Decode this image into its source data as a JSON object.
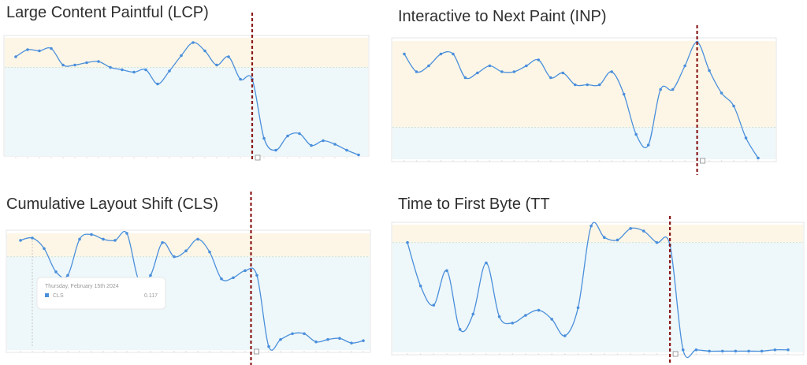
{
  "chart_data": [
    {
      "type": "line",
      "title": "Large Content Paintful (LCP)",
      "color": "#4a8fdc",
      "band_colors": [
        "#fdf6e6",
        "#eef7f9"
      ],
      "ylim": [
        0,
        100
      ],
      "threshold": 75,
      "marker": 20,
      "categories": [
        null,
        null,
        null,
        null,
        null,
        null,
        null,
        null,
        null,
        null,
        null,
        null,
        null,
        null,
        null,
        null,
        null,
        null,
        null,
        null,
        null,
        null,
        null,
        null,
        null,
        null,
        null,
        null,
        null,
        null
      ],
      "values": [
        84,
        90,
        89,
        91,
        77,
        77,
        79,
        80,
        75,
        73,
        71,
        73,
        61,
        72,
        85,
        96,
        89,
        77,
        84,
        65,
        65,
        15,
        5,
        17,
        19,
        9,
        13,
        10,
        5,
        1
      ]
    },
    {
      "type": "line",
      "title": "Interactive to Next Paint (INP)",
      "color": "#4a8fdc",
      "band_colors": [
        "#fdf6e6",
        "#eef7f9"
      ],
      "ylim": [
        0,
        100
      ],
      "threshold": 27,
      "marker": 24,
      "categories": [
        null,
        null,
        null,
        null,
        null,
        null,
        null,
        null,
        null,
        null,
        null,
        null,
        null,
        null,
        null,
        null,
        null,
        null,
        null,
        null,
        null,
        null,
        null,
        null,
        null,
        null,
        null,
        null,
        null,
        null
      ],
      "values": [
        89,
        74,
        79,
        89,
        89,
        69,
        73,
        79,
        74,
        74,
        79,
        84,
        69,
        73,
        63,
        63,
        63,
        74,
        55,
        21,
        12,
        59,
        59,
        79,
        99,
        75,
        56,
        45,
        18,
        1
      ]
    },
    {
      "type": "line",
      "title": "Cumulative Layout Shift (CLS)",
      "color": "#4a8fdc",
      "band_colors": [
        "#fdf6e6",
        "#eef7f9"
      ],
      "ylim": [
        0,
        100
      ],
      "threshold": 80,
      "marker": 19.5,
      "categories": [
        null,
        null,
        null,
        null,
        null,
        null,
        null,
        null,
        null,
        null,
        null,
        null,
        null,
        null,
        null,
        null,
        null,
        null,
        null,
        null,
        null,
        null,
        null,
        null,
        null,
        null,
        null,
        null,
        null,
        null
      ],
      "values": [
        94,
        96,
        87,
        67,
        64,
        95,
        99,
        95,
        94,
        100,
        60,
        64,
        92,
        80,
        85,
        95,
        84,
        61,
        62,
        68,
        64,
        3,
        9,
        14,
        14,
        7,
        9,
        10,
        6,
        8
      ],
      "tooltip": {
        "date": "Thursday, February 15th 2024",
        "name": "CLS",
        "value": 0.117
      }
    },
    {
      "type": "line",
      "title": "Time to First Byte (TT",
      "color": "#4a8fdc",
      "band_colors": [
        "#fdf6e6",
        "#eef7f9"
      ],
      "ylim": [
        0,
        100
      ],
      "threshold": 86,
      "marker": 20,
      "categories": [
        null,
        null,
        null,
        null,
        null,
        null,
        null,
        null,
        null,
        null,
        null,
        null,
        null,
        null,
        null,
        null,
        null,
        null,
        null,
        null,
        null,
        null,
        null,
        null,
        null,
        null,
        null,
        null,
        null,
        null
      ],
      "values": [
        86,
        52,
        37,
        64,
        18,
        30,
        70,
        28,
        23,
        29,
        33,
        26,
        13,
        35,
        99,
        90,
        88,
        97,
        95,
        86,
        84,
        2,
        2,
        1,
        1,
        1,
        1,
        1,
        2,
        2
      ]
    }
  ]
}
